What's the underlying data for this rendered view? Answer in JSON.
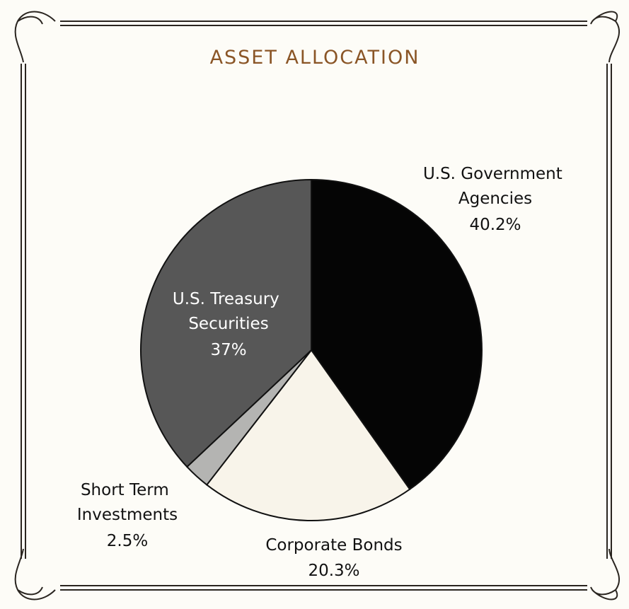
{
  "chart_data": {
    "type": "pie",
    "title": "ASSET ALLOCATION",
    "categories": [
      "U.S. Government Agencies",
      "Corporate Bonds",
      "Short Term Investments",
      "U.S. Treasury Securities"
    ],
    "values": [
      40.2,
      20.3,
      2.5,
      37
    ],
    "value_labels": [
      "40.2%",
      "20.3%",
      "2.5%",
      "37%"
    ],
    "colors": [
      "#050505",
      "#f8f4ea",
      "#b4b4b2",
      "#575757"
    ]
  }
}
